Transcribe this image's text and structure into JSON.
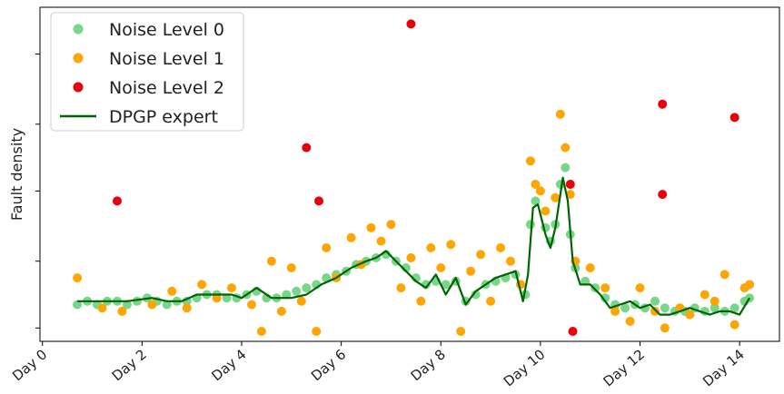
{
  "chart_data": {
    "type": "scatter",
    "title": "",
    "xlabel": "",
    "ylabel": "Fault density",
    "x_tick_labels": [
      "Day 0",
      "Day 2",
      "Day 4",
      "Day 6",
      "Day 8",
      "Day 10",
      "Day 12",
      "Day 14"
    ],
    "x_tick_values": [
      0,
      2,
      4,
      6,
      8,
      10,
      12,
      14
    ],
    "xlim": [
      -0.05,
      14.8
    ],
    "ylim": [
      0,
      1
    ],
    "y_tick_labels_shown": false,
    "grid": false,
    "legend_position": "top-left",
    "series": [
      {
        "name": "Noise Level 0",
        "kind": "scatter",
        "color": "#77d68a",
        "points": [
          [
            0.7,
            0.11
          ],
          [
            0.9,
            0.12
          ],
          [
            1.1,
            0.11
          ],
          [
            1.3,
            0.12
          ],
          [
            1.5,
            0.12
          ],
          [
            1.7,
            0.11
          ],
          [
            1.9,
            0.12
          ],
          [
            2.1,
            0.13
          ],
          [
            2.3,
            0.12
          ],
          [
            2.5,
            0.11
          ],
          [
            2.7,
            0.12
          ],
          [
            2.9,
            0.12
          ],
          [
            3.1,
            0.13
          ],
          [
            3.3,
            0.14
          ],
          [
            3.5,
            0.14
          ],
          [
            3.7,
            0.13
          ],
          [
            3.9,
            0.13
          ],
          [
            4.1,
            0.14
          ],
          [
            4.3,
            0.15
          ],
          [
            4.5,
            0.13
          ],
          [
            4.7,
            0.13
          ],
          [
            4.9,
            0.14
          ],
          [
            5.1,
            0.15
          ],
          [
            5.3,
            0.16
          ],
          [
            5.5,
            0.17
          ],
          [
            5.7,
            0.19
          ],
          [
            5.9,
            0.2
          ],
          [
            6.1,
            0.21
          ],
          [
            6.3,
            0.23
          ],
          [
            6.5,
            0.24
          ],
          [
            6.7,
            0.25
          ],
          [
            6.9,
            0.26
          ],
          [
            7.1,
            0.24
          ],
          [
            7.3,
            0.22
          ],
          [
            7.5,
            0.19
          ],
          [
            7.7,
            0.17
          ],
          [
            7.9,
            0.18
          ],
          [
            8.1,
            0.17
          ],
          [
            8.3,
            0.18
          ],
          [
            8.5,
            0.12
          ],
          [
            8.7,
            0.14
          ],
          [
            8.9,
            0.17
          ],
          [
            9.1,
            0.18
          ],
          [
            9.3,
            0.19
          ],
          [
            9.5,
            0.2
          ],
          [
            9.7,
            0.14
          ],
          [
            9.8,
            0.35
          ],
          [
            9.9,
            0.42
          ],
          [
            10.1,
            0.34
          ],
          [
            10.2,
            0.3
          ],
          [
            10.3,
            0.35
          ],
          [
            10.4,
            0.47
          ],
          [
            10.5,
            0.52
          ],
          [
            10.6,
            0.32
          ],
          [
            10.7,
            0.22
          ],
          [
            10.9,
            0.18
          ],
          [
            11.1,
            0.16
          ],
          [
            11.3,
            0.13
          ],
          [
            11.5,
            0.11
          ],
          [
            11.7,
            0.1
          ],
          [
            11.9,
            0.11
          ],
          [
            12.1,
            0.1
          ],
          [
            12.3,
            0.12
          ],
          [
            12.5,
            0.1
          ],
          [
            12.7,
            0.09
          ],
          [
            12.9,
            0.09
          ],
          [
            13.1,
            0.1
          ],
          [
            13.3,
            0.09
          ],
          [
            13.5,
            0.1
          ],
          [
            13.7,
            0.09
          ],
          [
            13.9,
            0.1
          ],
          [
            14.1,
            0.12
          ],
          [
            14.2,
            0.13
          ]
        ]
      },
      {
        "name": "Noise Level 1",
        "kind": "scatter",
        "color": "#ffa500",
        "points": [
          [
            0.7,
            0.19
          ],
          [
            1.2,
            0.1
          ],
          [
            1.6,
            0.09
          ],
          [
            2.2,
            0.11
          ],
          [
            2.6,
            0.15
          ],
          [
            2.9,
            0.1
          ],
          [
            3.2,
            0.17
          ],
          [
            3.5,
            0.13
          ],
          [
            3.8,
            0.16
          ],
          [
            4.2,
            0.11
          ],
          [
            4.4,
            0.03
          ],
          [
            4.6,
            0.24
          ],
          [
            4.8,
            0.09
          ],
          [
            5.0,
            0.22
          ],
          [
            5.2,
            0.12
          ],
          [
            5.5,
            0.03
          ],
          [
            5.7,
            0.28
          ],
          [
            5.9,
            0.19
          ],
          [
            6.2,
            0.31
          ],
          [
            6.4,
            0.23
          ],
          [
            6.6,
            0.34
          ],
          [
            6.8,
            0.3
          ],
          [
            7.0,
            0.35
          ],
          [
            7.2,
            0.16
          ],
          [
            7.4,
            0.25
          ],
          [
            7.6,
            0.12
          ],
          [
            7.8,
            0.28
          ],
          [
            8.0,
            0.22
          ],
          [
            8.2,
            0.29
          ],
          [
            8.4,
            0.03
          ],
          [
            8.6,
            0.21
          ],
          [
            8.8,
            0.26
          ],
          [
            9.0,
            0.12
          ],
          [
            9.2,
            0.28
          ],
          [
            9.4,
            0.24
          ],
          [
            9.6,
            0.17
          ],
          [
            9.8,
            0.54
          ],
          [
            9.9,
            0.47
          ],
          [
            10.0,
            0.45
          ],
          [
            10.1,
            0.39
          ],
          [
            10.3,
            0.43
          ],
          [
            10.4,
            0.68
          ],
          [
            10.5,
            0.58
          ],
          [
            10.6,
            0.44
          ],
          [
            10.7,
            0.24
          ],
          [
            11.0,
            0.22
          ],
          [
            11.3,
            0.16
          ],
          [
            11.5,
            0.09
          ],
          [
            11.8,
            0.06
          ],
          [
            12.0,
            0.16
          ],
          [
            12.3,
            0.09
          ],
          [
            12.5,
            0.04
          ],
          [
            12.8,
            0.1
          ],
          [
            13.0,
            0.08
          ],
          [
            13.3,
            0.14
          ],
          [
            13.5,
            0.12
          ],
          [
            13.7,
            0.2
          ],
          [
            13.9,
            0.05
          ],
          [
            14.1,
            0.16
          ],
          [
            14.2,
            0.17
          ]
        ]
      },
      {
        "name": "Noise Level 2",
        "kind": "scatter",
        "color": "#e8000b",
        "points": [
          [
            1.5,
            0.42
          ],
          [
            5.3,
            0.58
          ],
          [
            5.55,
            0.42
          ],
          [
            7.4,
            0.95
          ],
          [
            10.6,
            0.47
          ],
          [
            10.65,
            0.03
          ],
          [
            12.45,
            0.71
          ],
          [
            12.45,
            0.44
          ],
          [
            13.9,
            0.67
          ]
        ]
      },
      {
        "name": "DPGP expert",
        "kind": "line",
        "color": "#006400",
        "points": [
          [
            0.7,
            0.12
          ],
          [
            1.2,
            0.12
          ],
          [
            1.7,
            0.12
          ],
          [
            2.2,
            0.13
          ],
          [
            2.5,
            0.12
          ],
          [
            2.8,
            0.12
          ],
          [
            3.1,
            0.14
          ],
          [
            3.5,
            0.14
          ],
          [
            3.8,
            0.14
          ],
          [
            4.0,
            0.13
          ],
          [
            4.3,
            0.16
          ],
          [
            4.6,
            0.13
          ],
          [
            5.0,
            0.13
          ],
          [
            5.3,
            0.14
          ],
          [
            5.6,
            0.17
          ],
          [
            5.9,
            0.19
          ],
          [
            6.2,
            0.22
          ],
          [
            6.5,
            0.24
          ],
          [
            6.7,
            0.25
          ],
          [
            6.9,
            0.27
          ],
          [
            7.1,
            0.24
          ],
          [
            7.3,
            0.21
          ],
          [
            7.5,
            0.18
          ],
          [
            7.7,
            0.16
          ],
          [
            7.9,
            0.2
          ],
          [
            8.1,
            0.14
          ],
          [
            8.3,
            0.19
          ],
          [
            8.5,
            0.11
          ],
          [
            8.7,
            0.15
          ],
          [
            8.9,
            0.17
          ],
          [
            9.1,
            0.19
          ],
          [
            9.3,
            0.2
          ],
          [
            9.5,
            0.21
          ],
          [
            9.65,
            0.12
          ],
          [
            9.75,
            0.2
          ],
          [
            9.85,
            0.4
          ],
          [
            9.95,
            0.41
          ],
          [
            10.1,
            0.32
          ],
          [
            10.2,
            0.28
          ],
          [
            10.3,
            0.34
          ],
          [
            10.45,
            0.49
          ],
          [
            10.55,
            0.42
          ],
          [
            10.65,
            0.24
          ],
          [
            10.8,
            0.17
          ],
          [
            11.0,
            0.17
          ],
          [
            11.2,
            0.14
          ],
          [
            11.4,
            0.1
          ],
          [
            11.6,
            0.11
          ],
          [
            11.8,
            0.12
          ],
          [
            12.0,
            0.1
          ],
          [
            12.2,
            0.11
          ],
          [
            12.4,
            0.08
          ],
          [
            12.6,
            0.08
          ],
          [
            12.8,
            0.09
          ],
          [
            13.0,
            0.1
          ],
          [
            13.2,
            0.09
          ],
          [
            13.4,
            0.08
          ],
          [
            13.6,
            0.09
          ],
          [
            13.8,
            0.09
          ],
          [
            14.0,
            0.08
          ],
          [
            14.2,
            0.13
          ]
        ]
      }
    ]
  }
}
